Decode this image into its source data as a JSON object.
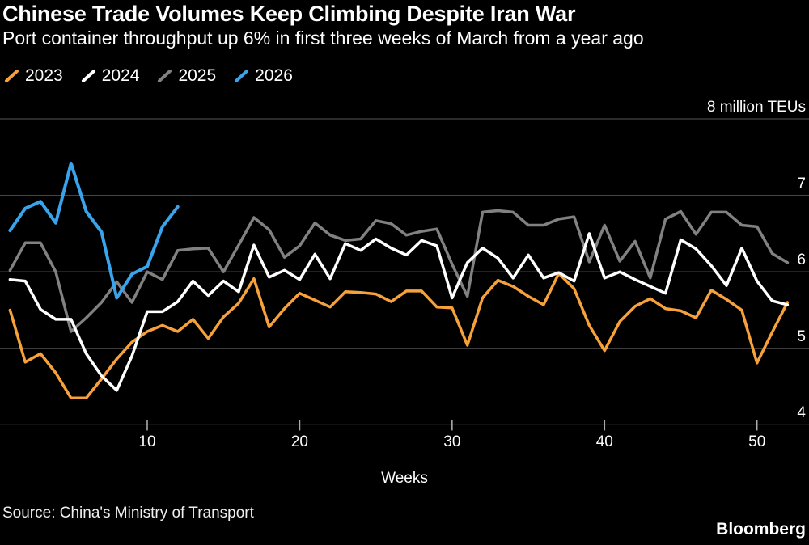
{
  "header": {
    "title": "Chinese Trade Volumes Keep Climbing Despite Iran War",
    "subtitle": "Port container throughput up 6% in first three weeks of March from a year ago"
  },
  "legend": [
    {
      "label": "2023",
      "color": "#F7A13B"
    },
    {
      "label": "2024",
      "color": "#FFFFFF"
    },
    {
      "label": "2025",
      "color": "#818181"
    },
    {
      "label": "2026",
      "color": "#39A3EC"
    }
  ],
  "chart_data": {
    "type": "line",
    "title": "Chinese Trade Volumes Keep Climbing Despite Iran War",
    "subtitle": "Port container throughput up 6% in first three weeks of March from a year ago",
    "xlabel": "Weeks",
    "ylabel": "million TEUs",
    "x_start_week": 1,
    "x_end_week": 52,
    "x_ticks": [
      10,
      20,
      30,
      40,
      50
    ],
    "ylim": [
      4,
      8
    ],
    "y_ticks": [
      {
        "value": 8,
        "label": "8 million TEUs"
      },
      {
        "value": 7,
        "label": "7"
      },
      {
        "value": 6,
        "label": "6"
      },
      {
        "value": 5,
        "label": "5"
      },
      {
        "value": 4,
        "label": "4"
      }
    ],
    "grid": "horizontal",
    "legend_position": "top-left",
    "series": [
      {
        "name": "2023",
        "color": "#F7A13B",
        "stroke_width": 3.5,
        "values": [
          5.5,
          4.82,
          4.93,
          4.68,
          4.35,
          4.35,
          4.6,
          4.86,
          5.08,
          5.22,
          5.3,
          5.22,
          5.38,
          5.13,
          5.41,
          5.59,
          5.91,
          5.28,
          5.52,
          5.72,
          5.63,
          5.54,
          5.74,
          5.73,
          5.71,
          5.61,
          5.75,
          5.75,
          5.54,
          5.53,
          5.04,
          5.66,
          5.89,
          5.81,
          5.68,
          5.57,
          5.98,
          5.78,
          5.3,
          4.97,
          5.35,
          5.55,
          5.65,
          5.52,
          5.49,
          5.4,
          5.76,
          5.64,
          5.5,
          4.81,
          5.21,
          5.6
        ]
      },
      {
        "name": "2025",
        "color": "#818181",
        "stroke_width": 3.5,
        "values": [
          6.02,
          6.38,
          6.38,
          6.0,
          5.22,
          5.4,
          5.6,
          5.87,
          5.6,
          6.0,
          5.9,
          6.28,
          6.3,
          6.31,
          6.0,
          6.35,
          6.71,
          6.55,
          6.19,
          6.34,
          6.64,
          6.48,
          6.41,
          6.43,
          6.67,
          6.63,
          6.48,
          6.53,
          6.56,
          6.1,
          5.68,
          6.78,
          6.8,
          6.78,
          6.61,
          6.61,
          6.69,
          6.72,
          6.13,
          6.61,
          6.14,
          6.4,
          5.92,
          6.69,
          6.79,
          6.49,
          6.78,
          6.78,
          6.61,
          6.59,
          6.24,
          6.12
        ]
      },
      {
        "name": "2024",
        "color": "#FFFFFF",
        "stroke_width": 3.5,
        "values": [
          5.9,
          5.88,
          5.51,
          5.38,
          5.38,
          4.93,
          4.64,
          4.45,
          4.9,
          5.48,
          5.48,
          5.61,
          5.88,
          5.69,
          5.88,
          5.74,
          6.35,
          5.93,
          6.02,
          5.9,
          6.23,
          5.91,
          6.37,
          6.28,
          6.43,
          6.31,
          6.22,
          6.41,
          6.34,
          5.66,
          6.12,
          6.31,
          6.18,
          5.92,
          6.22,
          5.92,
          5.99,
          5.88,
          6.5,
          5.92,
          6.0,
          5.9,
          5.81,
          5.72,
          6.42,
          6.3,
          6.08,
          5.82,
          6.31,
          5.88,
          5.62,
          5.57
        ]
      },
      {
        "name": "2026",
        "color": "#39A3EC",
        "stroke_width": 4,
        "values": [
          6.54,
          6.83,
          6.92,
          6.64,
          7.42,
          6.79,
          6.52,
          5.66,
          5.97,
          6.07,
          6.59,
          6.85
        ]
      }
    ]
  },
  "footer": {
    "source": "Source: China's Ministry of Transport",
    "brand": "Bloomberg"
  },
  "colors": {
    "background": "#000000",
    "grid": "#454545",
    "axis": "#454545",
    "tick": "#aaaaaa",
    "text": "#ffffff"
  }
}
